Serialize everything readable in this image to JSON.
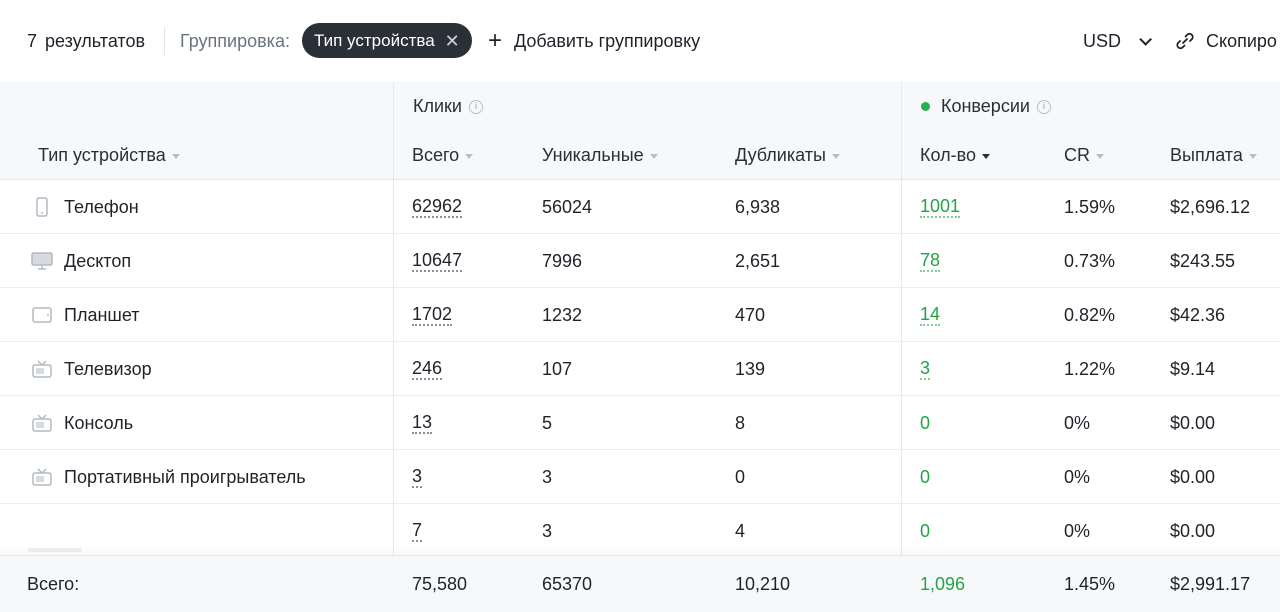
{
  "toolbar": {
    "results_count": "7",
    "results_label": "результатов",
    "grouping_label": "Группировка:",
    "grouping_chip": "Тип устройства",
    "add_grouping": "Добавить группировку",
    "currency": "USD",
    "copy_label": "Скопиро"
  },
  "table": {
    "groups": {
      "clicks": "Клики",
      "conversions": "Конверсии"
    },
    "columns": {
      "device_type": "Тип устройства",
      "total": "Всего",
      "unique": "Уникальные",
      "duplicates": "Дубликаты",
      "count": "Кол-во",
      "cr": "CR",
      "payout": "Выплата"
    },
    "rows": [
      {
        "icon": "phone-icon",
        "device": "Телефон",
        "total": "62962",
        "unique": "56024",
        "duplicates": "6,938",
        "count": "1001",
        "cr": "1.59%",
        "payout": "$2,696.12"
      },
      {
        "icon": "desktop-icon",
        "device": "Десктоп",
        "total": "10647",
        "unique": "7996",
        "duplicates": "2,651",
        "count": "78",
        "cr": "0.73%",
        "payout": "$243.55"
      },
      {
        "icon": "tablet-icon",
        "device": "Планшет",
        "total": "1702",
        "unique": "1232",
        "duplicates": "470",
        "count": "14",
        "cr": "0.82%",
        "payout": "$42.36"
      },
      {
        "icon": "tv-icon",
        "device": "Телевизор",
        "total": "246",
        "unique": "107",
        "duplicates": "139",
        "count": "3",
        "cr": "1.22%",
        "payout": "$9.14"
      },
      {
        "icon": "console-icon",
        "device": "Консоль",
        "total": "13",
        "unique": "5",
        "duplicates": "8",
        "count": "0",
        "cr": "0%",
        "payout": "$0.00"
      },
      {
        "icon": "portable-player-icon",
        "device": "Портативный проигрыватель",
        "total": "3",
        "unique": "3",
        "duplicates": "0",
        "count": "0",
        "cr": "0%",
        "payout": "$0.00"
      },
      {
        "icon": "",
        "device": "",
        "total": "7",
        "unique": "3",
        "duplicates": "4",
        "count": "0",
        "cr": "0%",
        "payout": "$0.00"
      }
    ],
    "totals": {
      "label": "Всего:",
      "total": "75,580",
      "unique": "65370",
      "duplicates": "10,210",
      "count": "1,096",
      "cr": "1.45%",
      "payout": "$2,991.17"
    }
  },
  "colors": {
    "accent_green": "#22a447",
    "chip_bg": "#2b3038",
    "header_bg": "#f7f8fa"
  }
}
